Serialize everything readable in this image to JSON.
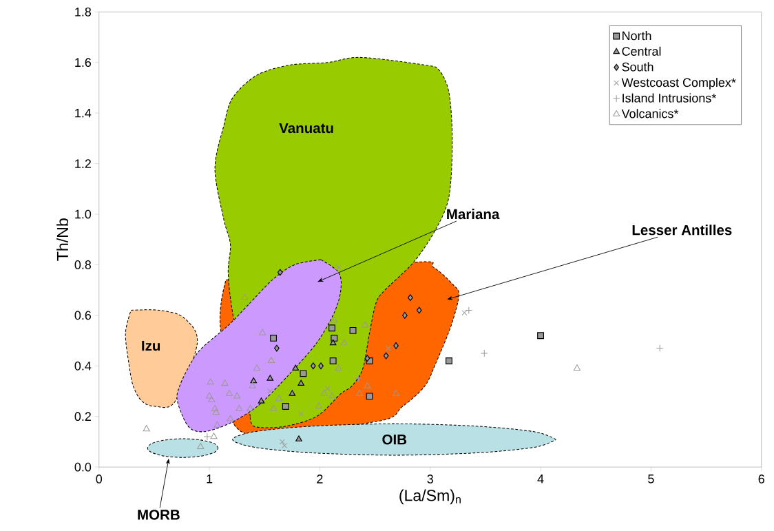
{
  "chart_data": {
    "type": "scatter",
    "xlabel": "(La/Sm)$_{n}$",
    "ylabel": "Th/Nb",
    "xlim": [
      0,
      6
    ],
    "xticks": [
      0,
      1,
      2,
      3,
      4,
      5,
      6
    ],
    "ylim": [
      0,
      1.8
    ],
    "yticks": [
      {
        "value": 0,
        "label": "0.0"
      },
      0.2,
      0.4,
      0.6,
      0.8,
      {
        "value": 1,
        "label": "1.0"
      },
      1.2,
      1.4,
      1.6,
      1.8
    ],
    "grid": false,
    "legend": "top right",
    "series": [
      {
        "type": "area",
        "name": "Lesser Antilles",
        "color": "#ff6600",
        "x": [
          1.15,
          2.85,
          3.03,
          3.21,
          3.26,
          3.19,
          3.05,
          2.95,
          2.75,
          2.51,
          1.29,
          1.1
        ],
        "values": [
          0.74,
          0.81,
          0.79,
          0.72,
          0.68,
          0.56,
          0.41,
          0.32,
          0.24,
          0.18,
          0.14,
          0.55
        ]
      },
      {
        "type": "area",
        "name": "Vanuatu",
        "color": "#99cc00",
        "x": [
          1.37,
          1.21,
          1.17,
          1.19,
          1.13,
          1.05,
          1.13,
          1.21,
          1.43,
          1.73,
          2.07,
          2.37,
          2.95,
          3.08,
          3.17,
          3.2,
          3.17,
          3.05,
          2.85,
          2.59,
          2.51,
          2.45,
          2.39,
          2.29,
          2.19,
          1.97,
          1.67,
          1.41
        ],
        "values": [
          0.2,
          0.61,
          0.77,
          0.88,
          0.98,
          1.18,
          1.35,
          1.46,
          1.55,
          1.59,
          1.6,
          1.62,
          1.59,
          1.57,
          1.48,
          1.29,
          1.07,
          0.94,
          0.81,
          0.7,
          0.65,
          0.53,
          0.39,
          0.32,
          0.29,
          0.2,
          0.16,
          0.16
        ]
      },
      {
        "type": "area",
        "name": "Izu",
        "color": "#ffcc99",
        "x": [
          0.29,
          0.55,
          0.77,
          0.89,
          0.69,
          0.51,
          0.39,
          0.31,
          0.27,
          0.24
        ],
        "values": [
          0.62,
          0.62,
          0.59,
          0.49,
          0.26,
          0.24,
          0.26,
          0.32,
          0.41,
          0.53
        ]
      },
      {
        "type": "area",
        "name": "Mariana",
        "color": "#cc99ff",
        "x": [
          2.01,
          2.17,
          2.19,
          2.13,
          1.97,
          1.73,
          1.51,
          1.37,
          1.17,
          0.95,
          0.81,
          0.71,
          0.73,
          0.83,
          0.93,
          1.17,
          1.37,
          1.57,
          1.77
        ],
        "values": [
          0.82,
          0.77,
          0.7,
          0.61,
          0.49,
          0.37,
          0.27,
          0.22,
          0.17,
          0.14,
          0.16,
          0.26,
          0.32,
          0.41,
          0.47,
          0.56,
          0.65,
          0.74,
          0.8
        ]
      },
      {
        "type": "area",
        "name": "MORB",
        "color": "#b9e0e4",
        "x": [
          1.08,
          1.04,
          0.92,
          0.76,
          0.6,
          0.48,
          0.44,
          0.48,
          0.6,
          0.76,
          0.92,
          1.04
        ],
        "values": [
          0.075,
          0.094,
          0.107,
          0.112,
          0.107,
          0.094,
          0.075,
          0.057,
          0.043,
          0.038,
          0.043,
          0.057
        ]
      },
      {
        "type": "area",
        "name": "OIB",
        "color": "#b9e0e4",
        "x": [
          4.14,
          3.94,
          3.41,
          2.68,
          1.94,
          1.41,
          1.21,
          1.41,
          1.94,
          2.68,
          3.41,
          3.94
        ],
        "values": [
          0.109,
          0.14,
          0.162,
          0.171,
          0.162,
          0.14,
          0.109,
          0.078,
          0.056,
          0.047,
          0.056,
          0.078
        ]
      },
      {
        "name": "North",
        "marker": "square",
        "color": "#999999",
        "x": [
          1.58,
          2.11,
          2.13,
          2.3,
          2.12,
          1.85,
          1.69,
          2.45,
          2.45,
          3.17,
          4.0
        ],
        "values": [
          0.51,
          0.55,
          0.51,
          0.54,
          0.42,
          0.37,
          0.24,
          0.42,
          0.28,
          0.42,
          0.52
        ]
      },
      {
        "name": "Central",
        "marker": "triangle",
        "color": "#999999",
        "x": [
          2.12,
          1.78,
          1.83,
          1.75,
          1.55,
          1.4,
          1.47,
          1.81
        ],
        "values": [
          0.49,
          0.39,
          0.33,
          0.29,
          0.35,
          0.34,
          0.26,
          0.11
        ]
      },
      {
        "name": "South",
        "marker": "diamond",
        "color": "#999999",
        "x": [
          1.64,
          1.61,
          1.94,
          2.01,
          2.82,
          2.9,
          2.77,
          2.69,
          2.6,
          2.43
        ],
        "values": [
          0.77,
          0.47,
          0.4,
          0.4,
          0.67,
          0.62,
          0.6,
          0.48,
          0.44,
          0.43
        ]
      },
      {
        "name": "Westcoast Complex*",
        "marker": "x",
        "color": "#999999",
        "x": [
          3.31,
          1.66,
          1.68,
          1.83,
          2.07,
          2.17,
          1.55,
          2.62
        ],
        "values": [
          0.61,
          0.1,
          0.085,
          0.21,
          0.31,
          0.79,
          0.3,
          0.47
        ]
      },
      {
        "name": "Island Intrusions*",
        "marker": "plus",
        "color": "#999999",
        "x": [
          3.35,
          3.49,
          5.08,
          0.98,
          2.35
        ],
        "values": [
          0.62,
          0.45,
          0.47,
          0.12,
          0.35
        ]
      },
      {
        "name": "Volcanics*",
        "marker": "triangle-open",
        "color": "#999999",
        "x": [
          0.43,
          0.92,
          1.04,
          1.07,
          1.01,
          1.0,
          1.02,
          1.05,
          1.06,
          1.14,
          1.18,
          1.25,
          1.27,
          1.19,
          1.37,
          1.39,
          1.43,
          1.56,
          1.48,
          1.32,
          1.58,
          1.63,
          1.99,
          2.04,
          2.11,
          2.17,
          2.13,
          2.22,
          2.41,
          2.43,
          2.36,
          2.69,
          4.33
        ],
        "values": [
          0.15,
          0.08,
          0.12,
          0.165,
          0.335,
          0.28,
          0.265,
          0.23,
          0.215,
          0.33,
          0.29,
          0.28,
          0.23,
          0.19,
          0.23,
          0.32,
          0.39,
          0.42,
          0.53,
          0.67,
          0.23,
          0.27,
          0.24,
          0.29,
          0.28,
          0.39,
          0.58,
          0.49,
          0.56,
          0.32,
          0.29,
          0.29,
          0.39
        ]
      }
    ]
  }
}
